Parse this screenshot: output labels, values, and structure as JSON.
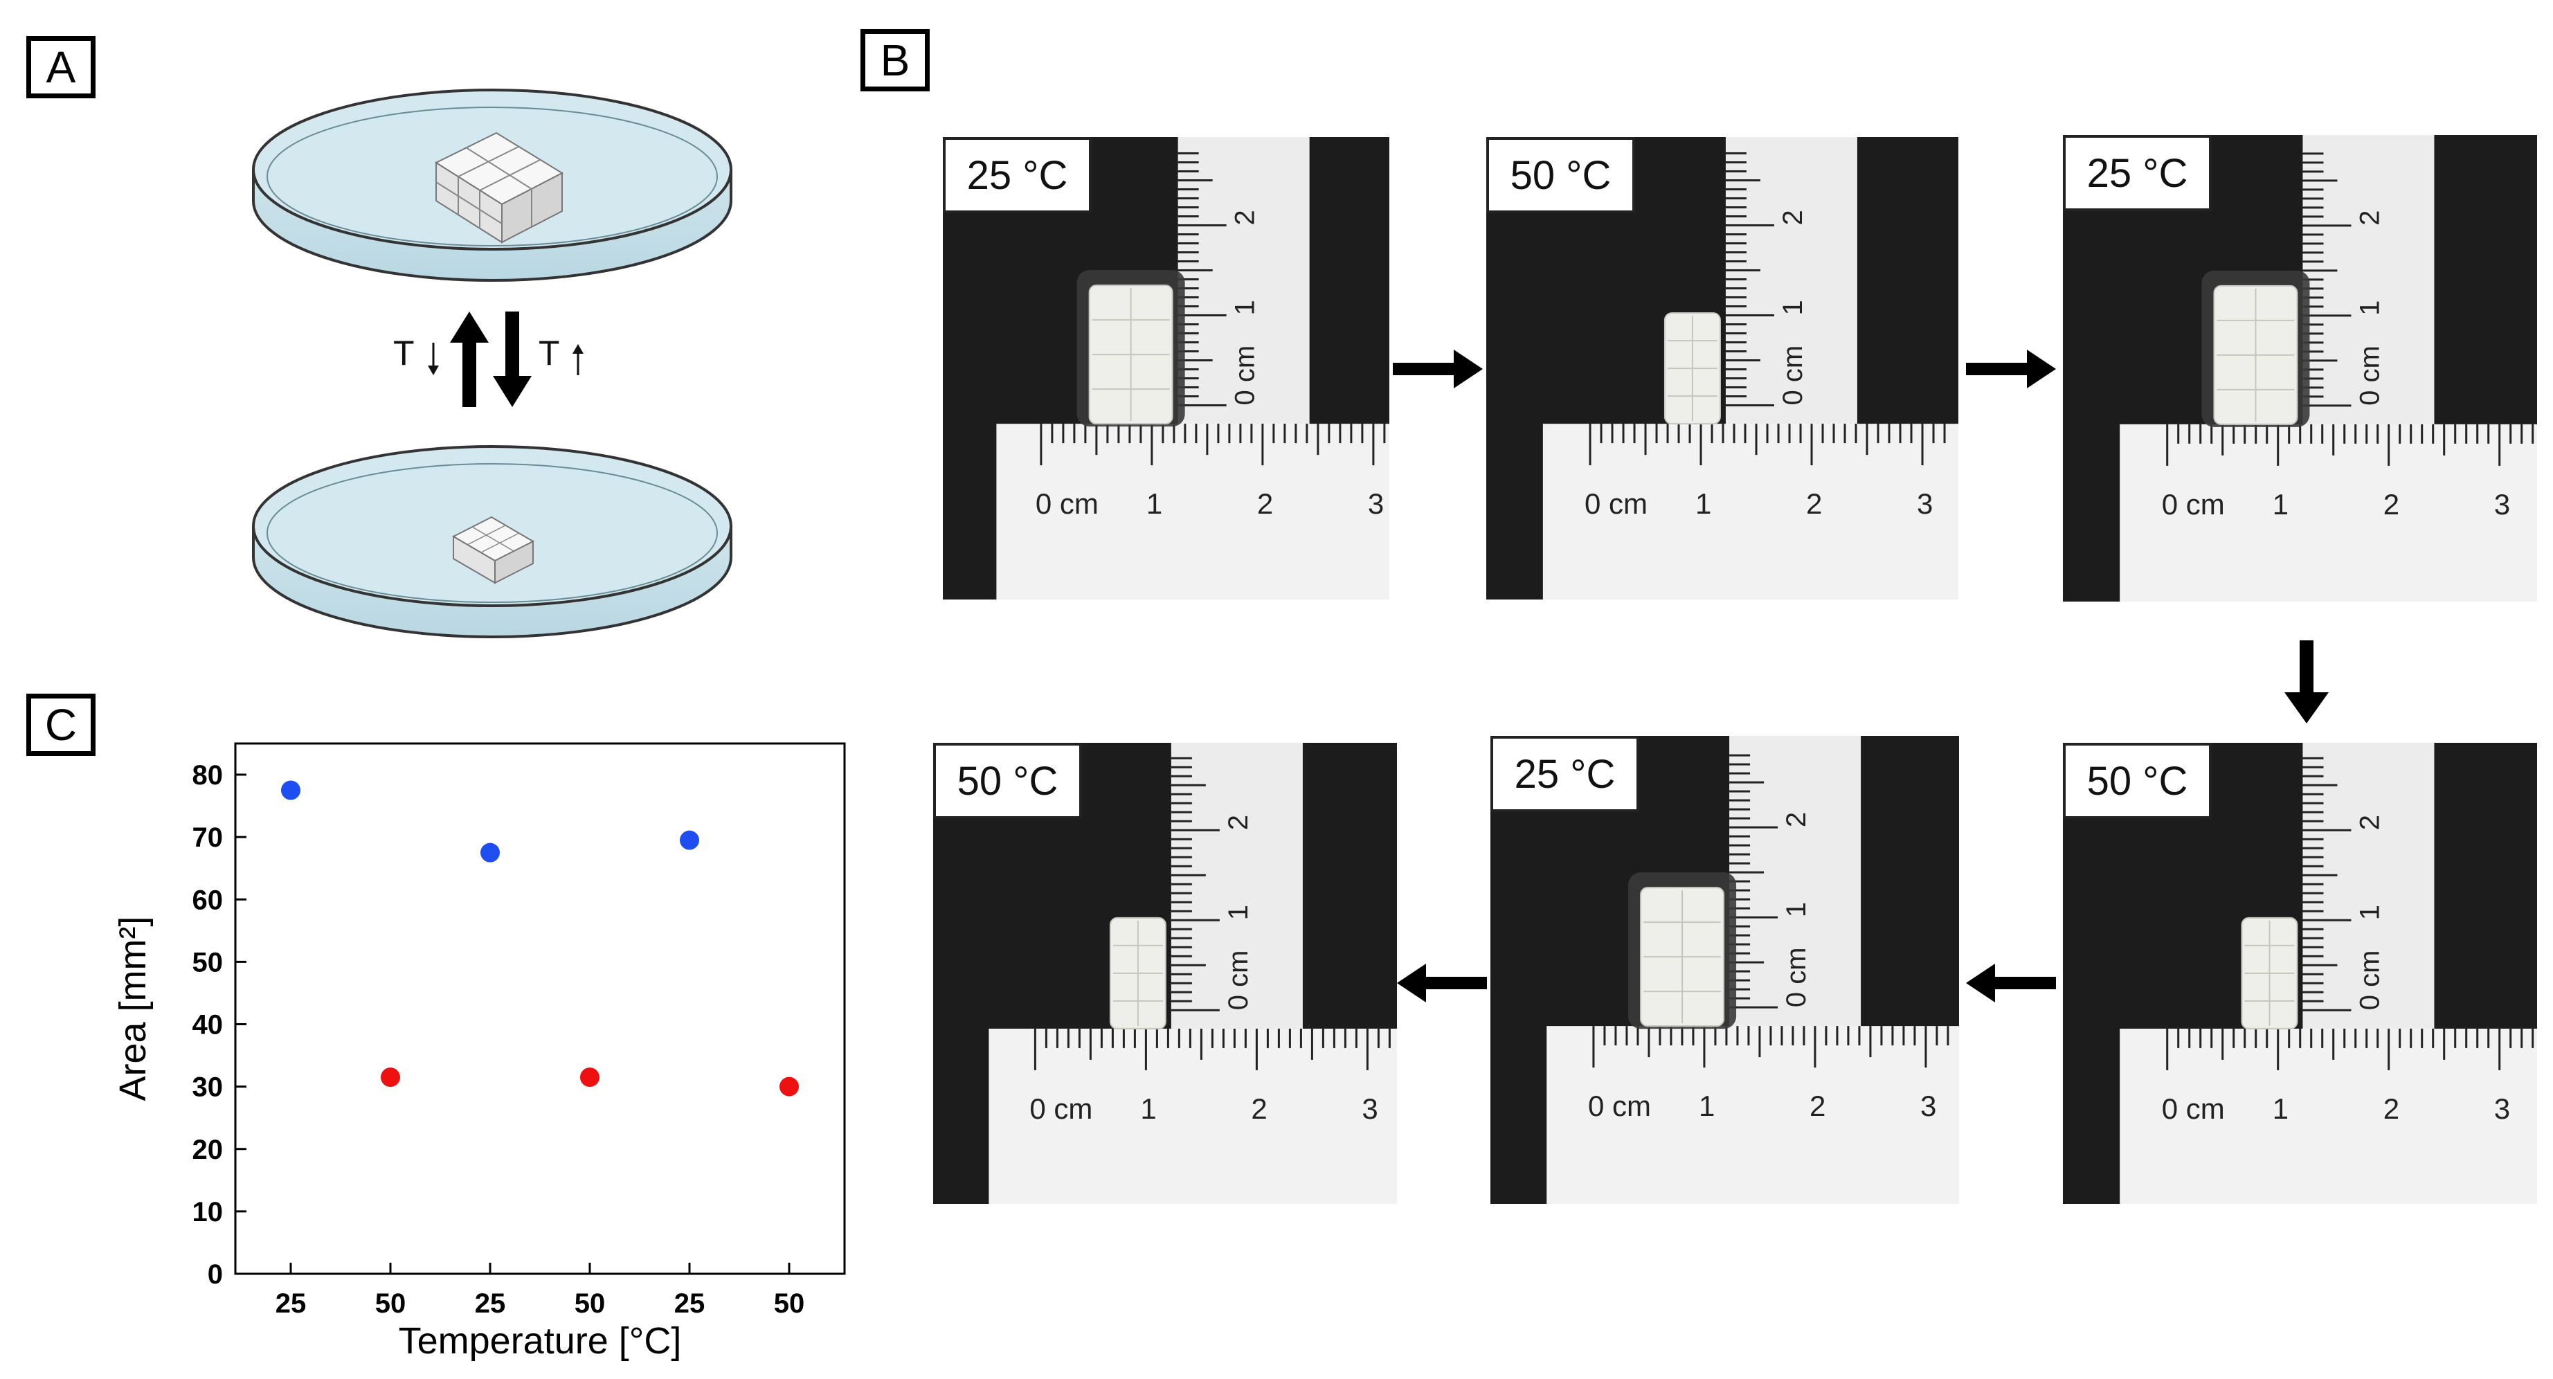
{
  "panels": {
    "a": "A",
    "b": "B",
    "c": "C"
  },
  "schematic": {
    "cool_label": "T",
    "heat_label": "T"
  },
  "photos": [
    {
      "temp": "25 °C",
      "state": "swollen"
    },
    {
      "temp": "50 °C",
      "state": "shrunk"
    },
    {
      "temp": "25 °C",
      "state": "swollen"
    },
    {
      "temp": "50 °C",
      "state": "shrunk"
    },
    {
      "temp": "25 °C",
      "state": "swollen"
    },
    {
      "temp": "50 °C",
      "state": "shrunk"
    }
  ],
  "ruler": {
    "unit": "cm",
    "ticks": [
      "0",
      "1",
      "2",
      "3"
    ]
  },
  "colors": {
    "swollen": "#1f4ef0",
    "shrunk": "#ee1111"
  },
  "chart_data": {
    "type": "scatter",
    "xlabel": "Temperature [°C]",
    "ylabel": "Area [mm²]",
    "categories": [
      "25",
      "50",
      "25",
      "50",
      "25",
      "50"
    ],
    "values": [
      77.5,
      31.5,
      67.5,
      31.5,
      69.5,
      30
    ],
    "point_colors": [
      "#1f4ef0",
      "#ee1111",
      "#1f4ef0",
      "#ee1111",
      "#1f4ef0",
      "#ee1111"
    ],
    "ylim": [
      0,
      80
    ],
    "yticks": [
      0,
      10,
      20,
      30,
      40,
      50,
      60,
      70,
      80
    ],
    "grid": false
  }
}
